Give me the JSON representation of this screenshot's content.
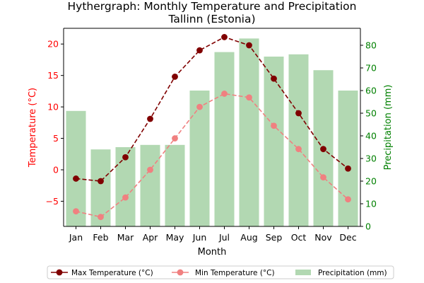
{
  "chart_data": {
    "type": "bar+line",
    "title_line1": "Hythergraph: Monthly Temperature and Precipitation",
    "title_line2": "Tallinn (Estonia)",
    "xlabel": "Month",
    "ylabel_left": "Temperature (°C)",
    "ylabel_right": "Precipitation (mm)",
    "categories": [
      "Jan",
      "Feb",
      "Mar",
      "Apr",
      "May",
      "Jun",
      "Jul",
      "Aug",
      "Sep",
      "Oct",
      "Nov",
      "Dec"
    ],
    "ylim_left": [
      -9,
      22.5
    ],
    "ylim_right": [
      0,
      87.5
    ],
    "yticks_left": [
      -5,
      0,
      5,
      10,
      15,
      20
    ],
    "yticks_right": [
      0,
      10,
      20,
      30,
      40,
      50,
      60,
      70,
      80
    ],
    "series": [
      {
        "name": "Max Temperature (°C)",
        "kind": "line",
        "axis": "left",
        "color": "#800000",
        "values": [
          -1.4,
          -1.8,
          2.0,
          8.1,
          14.8,
          19.0,
          21.1,
          19.8,
          14.5,
          9.0,
          3.3,
          0.2
        ]
      },
      {
        "name": "Min Temperature (°C)",
        "kind": "line",
        "axis": "left",
        "color": "#f08080",
        "values": [
          -6.6,
          -7.5,
          -4.4,
          0.0,
          5.0,
          10.0,
          12.1,
          11.5,
          7.0,
          3.3,
          -1.2,
          -4.7
        ]
      },
      {
        "name": "Precipitation (mm)",
        "kind": "bar",
        "axis": "right",
        "color": "#b2d8b2",
        "values": [
          51,
          34,
          35,
          36,
          36,
          60,
          77,
          83,
          75,
          76,
          69,
          60
        ]
      }
    ],
    "left_axis_color": "#ff0000",
    "right_axis_color": "#008000",
    "grid": false,
    "legend_position": "bottom-center"
  }
}
